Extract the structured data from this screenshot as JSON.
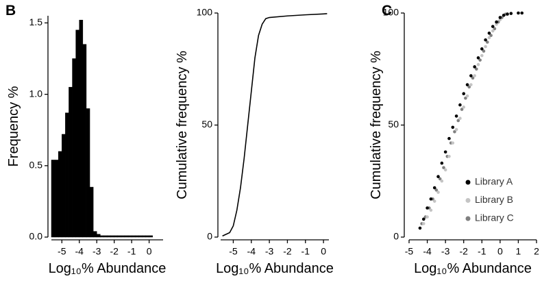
{
  "chart_data": [
    {
      "type": "histogram",
      "panel_label": "B",
      "xlabel": "Log₁₀% Abundance",
      "ylabel": "Frequency %",
      "bins": [
        -5.6,
        -5.4,
        -5.2,
        -5.0,
        -4.8,
        -4.6,
        -4.4,
        -4.2,
        -4.0,
        -3.8,
        -3.6,
        -3.4,
        -3.2,
        -3.0,
        -2.8,
        -2.6,
        -2.4,
        -2.2,
        -2.0,
        -1.8,
        -1.6,
        -1.4,
        -1.2,
        -1.0,
        -0.8,
        -0.6,
        -0.4,
        -0.2,
        0.0,
        0.2
      ],
      "values": [
        0.54,
        0.54,
        0.6,
        0.72,
        0.87,
        1.05,
        1.25,
        1.45,
        1.52,
        1.35,
        0.9,
        0.35,
        0.04,
        0.02,
        0.01,
        0.01,
        0.01,
        0.01,
        0.01,
        0.01,
        0.01,
        0.01,
        0.01,
        0.01,
        0.01,
        0.01,
        0.01,
        0.01,
        0.01
      ],
      "color": "#000000",
      "xlim": [
        -5.6,
        0.8
      ],
      "xticks": [
        -5,
        -4,
        -3,
        -2,
        -1,
        0
      ],
      "ylim": [
        0,
        1.55
      ],
      "yticks": [
        {
          "value": 0,
          "label": "0.0"
        },
        0.5,
        {
          "value": 1,
          "label": "1.0"
        },
        1.5
      ]
    },
    {
      "type": "line",
      "xlabel": "Log₁₀% Abundance",
      "ylabel": "Cumulative frequency %",
      "x": [
        -5.6,
        -5.2,
        -5.0,
        -4.8,
        -4.6,
        -4.4,
        -4.2,
        -4.0,
        -3.8,
        -3.6,
        -3.4,
        -3.2,
        -3.0,
        -2.0,
        -1.0,
        0.0,
        0.2
      ],
      "values": [
        0.5,
        2,
        5,
        12,
        22,
        35,
        50,
        65,
        80,
        90,
        95,
        97.5,
        98,
        98.7,
        99.2,
        99.6,
        99.7
      ],
      "color": "#000000",
      "xlim": [
        -5.7,
        0.3
      ],
      "xticks": [
        -5,
        -4,
        -3,
        -2,
        -1,
        0
      ],
      "ylim": [
        0,
        100
      ],
      "yticks": [
        0,
        50,
        100
      ]
    },
    {
      "type": "scatter",
      "panel_label": "C",
      "xlabel": "Log₁₀% Abundance",
      "ylabel": "Cumulative frequency %",
      "legend": "lower right",
      "series": [
        {
          "name": "Library A",
          "color": "#000000",
          "x": [
            -4.4,
            -4.2,
            -4.0,
            -3.8,
            -3.6,
            -3.4,
            -3.2,
            -3.0,
            -2.8,
            -2.6,
            -2.4,
            -2.2,
            -2.0,
            -1.8,
            -1.6,
            -1.4,
            -1.2,
            -1.0,
            -0.8,
            -0.6,
            -0.4,
            -0.2,
            0,
            0.2,
            0.4,
            0.6,
            1.0,
            1.2
          ],
          "values": [
            4,
            8,
            13,
            17,
            22,
            27,
            33,
            38,
            44,
            49,
            54,
            59,
            64,
            68,
            72,
            76,
            80,
            84,
            88,
            91,
            94,
            96,
            98,
            99,
            99.5,
            99.8,
            100,
            100
          ]
        },
        {
          "name": "Library B",
          "color": "#c4c4c4",
          "x": [
            -4.2,
            -4.0,
            -3.8,
            -3.6,
            -3.4,
            -3.2,
            -3.0,
            -2.8,
            -2.6,
            -2.4,
            -2.2,
            -2.0,
            -1.8,
            -1.6,
            -1.4,
            -1.2,
            -1.0,
            -0.8,
            -0.6,
            -0.4,
            -0.2,
            0,
            0.2,
            0.4
          ],
          "values": [
            6,
            9,
            12,
            16,
            20,
            25,
            30,
            36,
            42,
            48,
            53,
            58,
            63,
            68,
            72,
            77,
            81,
            85,
            89,
            92,
            95,
            97,
            99,
            99.7
          ]
        },
        {
          "name": "Library C",
          "color": "#808080",
          "x": [
            -4.3,
            -4.1,
            -3.9,
            -3.7,
            -3.5,
            -3.3,
            -3.1,
            -2.9,
            -2.7,
            -2.5,
            -2.3,
            -2.1,
            -1.9,
            -1.7,
            -1.5,
            -1.3,
            -1.1,
            -0.9,
            -0.7,
            -0.5,
            -0.3,
            -0.1,
            0.1,
            0.3
          ],
          "values": [
            6,
            9,
            13,
            17,
            21,
            26,
            31,
            36,
            42,
            47,
            52,
            57,
            62,
            67,
            71,
            75,
            79,
            83,
            87,
            90,
            93,
            96,
            98,
            99.5
          ]
        }
      ],
      "xlim": [
        -5,
        2
      ],
      "xticks": [
        -5,
        -4,
        -3,
        -2,
        -1,
        0,
        1,
        2
      ],
      "ylim": [
        0,
        100
      ],
      "yticks": [
        0,
        50,
        100
      ]
    }
  ]
}
